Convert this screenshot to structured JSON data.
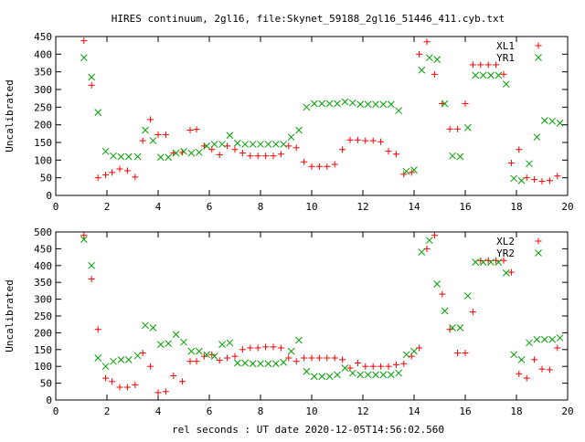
{
  "title": "HIRES continuum, 2gl16, file:Skynet_59188_2gl16_51446_411.cyb.txt",
  "xlabel": "rel seconds : UT date 2020-12-05T14:56:02.560",
  "colors": {
    "series_a": "#ff0000",
    "series_b": "#00a000",
    "axis": "#000000"
  },
  "chart_data": [
    {
      "type": "scatter",
      "ylabel": "Uncalibrated",
      "xlim": [
        0,
        20
      ],
      "ylim": [
        0,
        450
      ],
      "xticks": [
        0,
        2,
        4,
        6,
        8,
        10,
        12,
        14,
        16,
        18,
        20
      ],
      "yticks": [
        0,
        50,
        100,
        150,
        200,
        250,
        300,
        350,
        400,
        450
      ],
      "legend_position": "top-right",
      "series": [
        {
          "name": "XL1",
          "marker": "plus",
          "x": [
            1.1,
            1.4,
            1.65,
            1.95,
            2.2,
            2.5,
            2.8,
            3.1,
            3.4,
            3.7,
            4.0,
            4.3,
            4.6,
            4.95,
            5.25,
            5.5,
            5.8,
            6.1,
            6.4,
            6.7,
            7.0,
            7.3,
            7.6,
            7.9,
            8.2,
            8.5,
            8.8,
            9.1,
            9.4,
            9.7,
            10.0,
            10.3,
            10.6,
            10.9,
            11.2,
            11.5,
            11.8,
            12.1,
            12.4,
            12.7,
            13.0,
            13.3,
            13.6,
            13.9,
            14.2,
            14.5,
            14.8,
            15.1,
            15.4,
            15.7,
            16.0,
            16.3,
            16.6,
            16.9,
            17.2,
            17.5,
            17.8,
            18.1,
            18.4,
            18.7,
            19.0,
            19.3,
            19.6
          ],
          "y": [
            438,
            312,
            50,
            58,
            65,
            75,
            70,
            52,
            155,
            215,
            172,
            172,
            120,
            122,
            185,
            187,
            140,
            130,
            115,
            140,
            130,
            120,
            112,
            112,
            112,
            112,
            117,
            140,
            135,
            95,
            82,
            82,
            82,
            88,
            130,
            157,
            157,
            155,
            155,
            152,
            125,
            117,
            60,
            65,
            400,
            435,
            343,
            260,
            188,
            188,
            260,
            370,
            370,
            370,
            370,
            343,
            92,
            130,
            50,
            45,
            40,
            42,
            55
          ]
        },
        {
          "name": "YR1",
          "marker": "cross",
          "x": [
            1.1,
            1.4,
            1.65,
            1.95,
            2.25,
            2.55,
            2.85,
            3.2,
            3.5,
            3.8,
            4.1,
            4.4,
            4.7,
            5.0,
            5.3,
            5.6,
            5.9,
            6.2,
            6.5,
            6.8,
            7.1,
            7.4,
            7.7,
            8.0,
            8.3,
            8.6,
            8.9,
            9.2,
            9.5,
            9.8,
            10.1,
            10.4,
            10.7,
            11.0,
            11.3,
            11.6,
            11.9,
            12.2,
            12.5,
            12.8,
            13.1,
            13.4,
            13.7,
            14.0,
            14.3,
            14.6,
            14.9,
            15.2,
            15.5,
            15.8,
            16.1,
            16.4,
            16.7,
            17.0,
            17.3,
            17.6,
            17.9,
            18.2,
            18.5,
            18.8,
            19.1,
            19.4,
            19.7
          ],
          "y": [
            390,
            335,
            235,
            125,
            112,
            110,
            110,
            110,
            185,
            155,
            108,
            108,
            120,
            125,
            120,
            122,
            140,
            145,
            145,
            170,
            148,
            145,
            145,
            145,
            145,
            145,
            145,
            165,
            185,
            250,
            260,
            260,
            260,
            260,
            265,
            262,
            258,
            258,
            258,
            258,
            258,
            240,
            68,
            72,
            355,
            390,
            385,
            260,
            112,
            110,
            192,
            340,
            340,
            340,
            340,
            315,
            48,
            42,
            90,
            165,
            212,
            210,
            205
          ]
        }
      ]
    },
    {
      "type": "scatter",
      "ylabel": "Uncalibrated",
      "xlim": [
        0,
        20
      ],
      "ylim": [
        0,
        500
      ],
      "xticks": [
        0,
        2,
        4,
        6,
        8,
        10,
        12,
        14,
        16,
        18,
        20
      ],
      "yticks": [
        0,
        50,
        100,
        150,
        200,
        250,
        300,
        350,
        400,
        450,
        500
      ],
      "legend_position": "top-right",
      "series": [
        {
          "name": "XL2",
          "marker": "plus",
          "x": [
            1.1,
            1.4,
            1.65,
            1.95,
            2.2,
            2.5,
            2.8,
            3.1,
            3.4,
            3.7,
            4.0,
            4.3,
            4.6,
            4.95,
            5.25,
            5.5,
            5.8,
            6.1,
            6.4,
            6.7,
            7.0,
            7.3,
            7.6,
            7.9,
            8.2,
            8.5,
            8.8,
            9.1,
            9.4,
            9.7,
            10.0,
            10.3,
            10.6,
            10.9,
            11.2,
            11.5,
            11.8,
            12.1,
            12.4,
            12.7,
            13.0,
            13.3,
            13.6,
            13.9,
            14.2,
            14.5,
            14.8,
            15.1,
            15.4,
            15.7,
            16.0,
            16.3,
            16.6,
            16.9,
            17.2,
            17.5,
            17.8,
            18.1,
            18.4,
            18.7,
            19.0,
            19.3,
            19.6
          ],
          "y": [
            490,
            360,
            210,
            65,
            55,
            38,
            38,
            45,
            140,
            100,
            22,
            25,
            72,
            55,
            115,
            115,
            130,
            135,
            118,
            125,
            130,
            150,
            155,
            155,
            158,
            158,
            155,
            125,
            115,
            125,
            125,
            125,
            125,
            125,
            120,
            95,
            110,
            100,
            100,
            100,
            100,
            105,
            108,
            130,
            155,
            450,
            490,
            315,
            210,
            140,
            140,
            262,
            415,
            415,
            415,
            415,
            380,
            78,
            65,
            120,
            92,
            90,
            155
          ]
        },
        {
          "name": "YR2",
          "marker": "cross",
          "x": [
            1.1,
            1.4,
            1.65,
            1.95,
            2.25,
            2.55,
            2.85,
            3.2,
            3.5,
            3.8,
            4.1,
            4.4,
            4.7,
            5.0,
            5.3,
            5.6,
            5.9,
            6.2,
            6.5,
            6.8,
            7.1,
            7.4,
            7.7,
            8.0,
            8.3,
            8.6,
            8.9,
            9.2,
            9.5,
            9.8,
            10.1,
            10.4,
            10.7,
            11.0,
            11.3,
            11.6,
            11.9,
            12.2,
            12.5,
            12.8,
            13.1,
            13.4,
            13.7,
            14.0,
            14.3,
            14.6,
            14.9,
            15.2,
            15.5,
            15.8,
            16.1,
            16.4,
            16.7,
            17.0,
            17.3,
            17.6,
            17.9,
            18.2,
            18.5,
            18.8,
            19.1,
            19.4,
            19.7
          ],
          "y": [
            478,
            400,
            125,
            100,
            115,
            120,
            120,
            132,
            222,
            215,
            165,
            168,
            195,
            172,
            145,
            145,
            135,
            130,
            165,
            170,
            110,
            110,
            108,
            108,
            108,
            108,
            112,
            145,
            178,
            85,
            70,
            70,
            70,
            75,
            95,
            80,
            75,
            75,
            75,
            75,
            75,
            80,
            135,
            145,
            440,
            475,
            345,
            265,
            215,
            215,
            310,
            410,
            410,
            410,
            410,
            378,
            135,
            120,
            170,
            180,
            180,
            180,
            185
          ]
        }
      ]
    }
  ]
}
